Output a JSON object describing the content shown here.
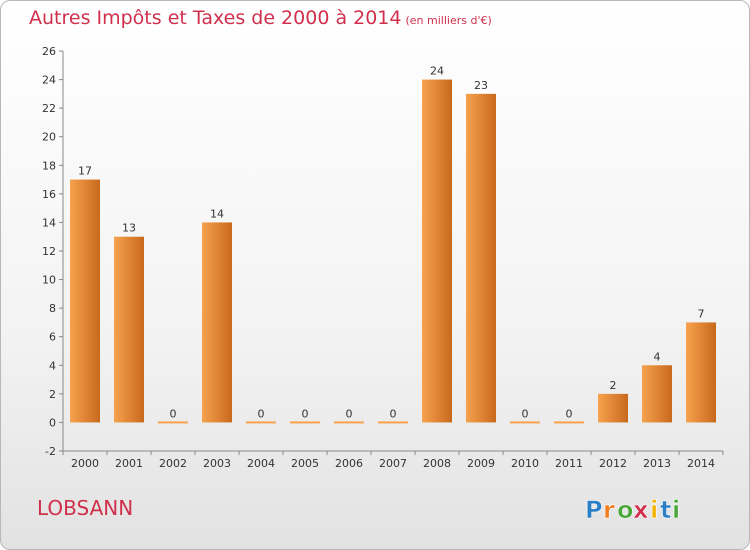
{
  "header": {
    "title": "Autres Impôts et Taxes de 2000 à 2014",
    "unit": "(en milliers d'€)"
  },
  "footer": {
    "commune": "LOBSANN",
    "logo_text": "Proxiti",
    "logo_letters": [
      "P",
      "r",
      "o",
      "x",
      "i",
      "t",
      "i"
    ],
    "logo_colors": [
      "#2c7ec5",
      "#f07c1d",
      "#4aa83a",
      "#d0304c",
      "#f3b200",
      "#2c7ec5",
      "#4aa83a"
    ]
  },
  "colors": {
    "bar_light": "#f7a24e",
    "bar_dark": "#c8691c",
    "title": "#d0304c"
  },
  "chart_data": {
    "type": "bar",
    "title": "Autres Impôts et Taxes de 2000 à 2014",
    "subtitle": "(en milliers d'€)",
    "xlabel": "",
    "ylabel": "",
    "categories": [
      "2000",
      "2001",
      "2002",
      "2003",
      "2004",
      "2005",
      "2006",
      "2007",
      "2008",
      "2009",
      "2010",
      "2011",
      "2012",
      "2013",
      "2014"
    ],
    "values": [
      17,
      13,
      0,
      14,
      0,
      0,
      0,
      0,
      24,
      23,
      0,
      0,
      2,
      4,
      7
    ],
    "data_labels": [
      "17",
      "13",
      "0",
      "14",
      "0",
      "0",
      "0",
      "0",
      "24",
      "23",
      "0",
      "0",
      "2",
      "4",
      "7"
    ],
    "ylim": [
      -2,
      26
    ],
    "yticks": [
      -2,
      0,
      2,
      4,
      6,
      8,
      10,
      12,
      14,
      16,
      18,
      20,
      22,
      24,
      26
    ],
    "grid": false,
    "legend": "none"
  }
}
